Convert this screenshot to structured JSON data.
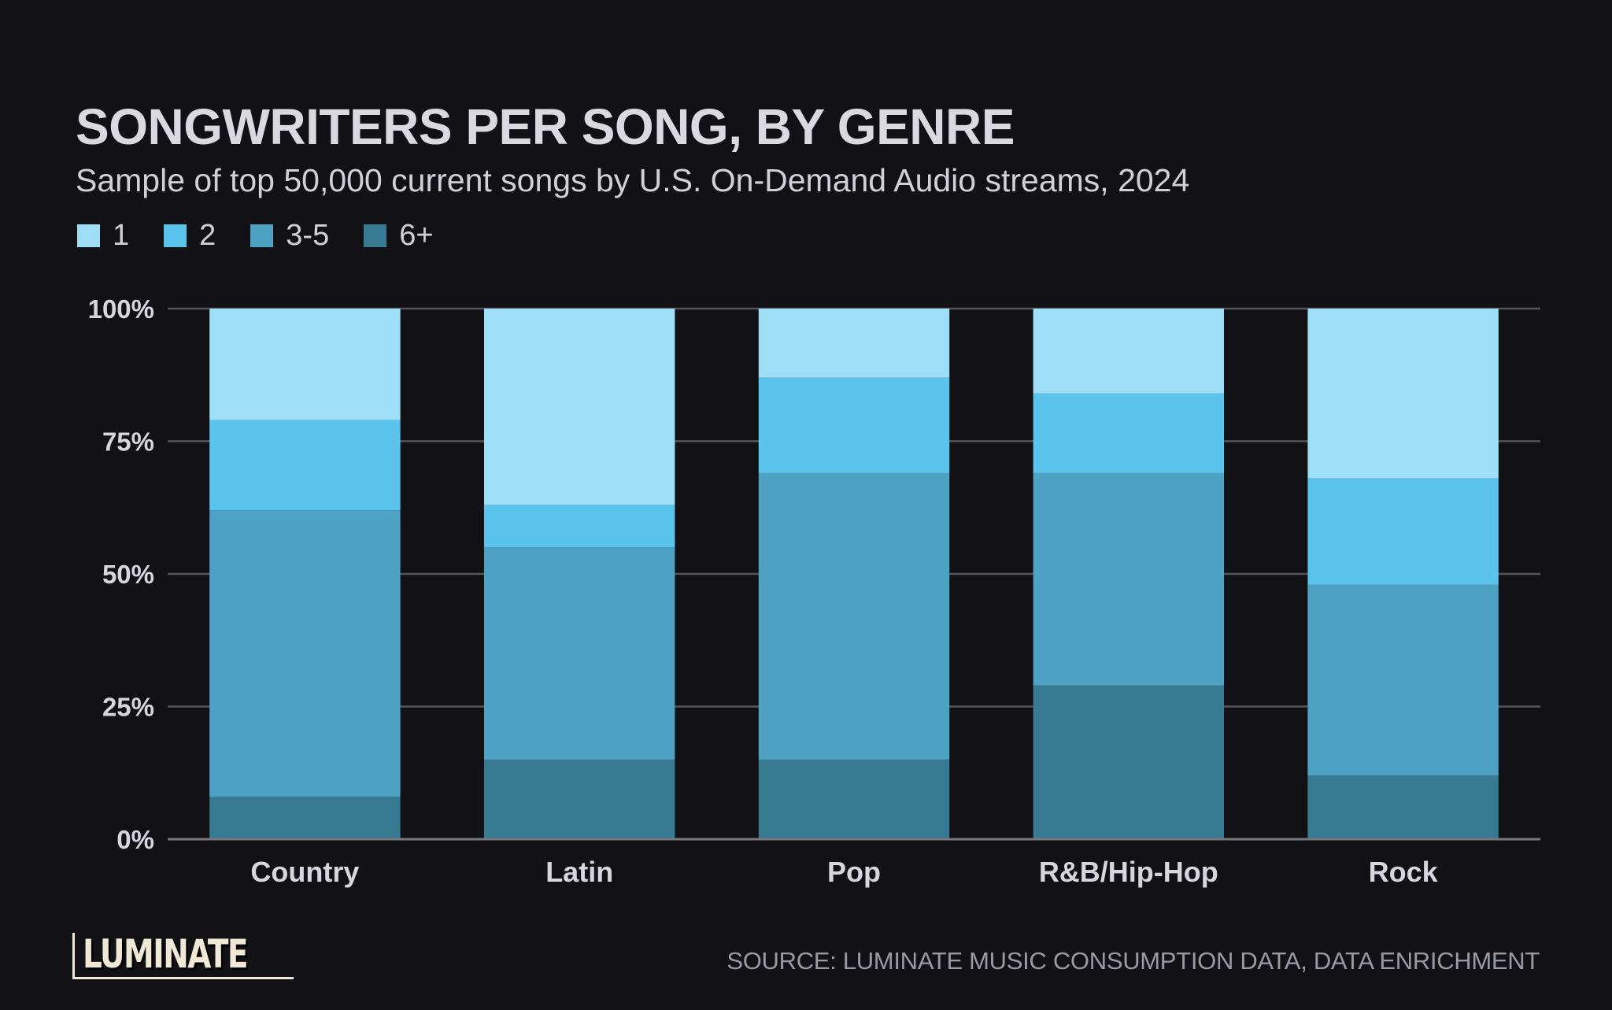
{
  "header": {
    "title": "SONGWRITERS PER SONG, BY GENRE",
    "subtitle": "Sample of top 50,000 current songs by U.S. On-Demand Audio streams, 2024"
  },
  "legend": [
    {
      "label": "1",
      "color": "#9edff7"
    },
    {
      "label": "2",
      "color": "#5ac4ed"
    },
    {
      "label": "3-5",
      "color": "#4ea2c3"
    },
    {
      "label": "6+",
      "color": "#387a92"
    }
  ],
  "chart_data": {
    "type": "bar",
    "stacked": true,
    "title": "SONGWRITERS PER SONG, BY GENRE",
    "subtitle": "Sample of top 50,000 current songs by U.S. On-Demand Audio streams, 2024",
    "xlabel": "",
    "ylabel": "",
    "ylim": [
      0,
      100
    ],
    "yticks": [
      0,
      25,
      50,
      75,
      100
    ],
    "ytick_labels": [
      "0%",
      "25%",
      "50%",
      "75%",
      "100%"
    ],
    "grid": true,
    "legend_position": "top-left",
    "categories": [
      "Country",
      "Latin",
      "Pop",
      "R&B/Hip-Hop",
      "Rock"
    ],
    "series": [
      {
        "name": "6+",
        "color": "#387a92",
        "values": [
          8,
          15,
          15,
          29,
          12
        ]
      },
      {
        "name": "3-5",
        "color": "#4ea2c3",
        "values": [
          54,
          40,
          54,
          40,
          36
        ]
      },
      {
        "name": "2",
        "color": "#5ac4ed",
        "values": [
          17,
          8,
          18,
          15,
          20
        ]
      },
      {
        "name": "1",
        "color": "#9edff7",
        "values": [
          21,
          37,
          13,
          16,
          32
        ]
      }
    ],
    "colors": {
      "background": "#111116",
      "grid": "#55555c",
      "text": "#d6d6dc"
    }
  },
  "footer": {
    "logo": "LUMINATE",
    "source": "SOURCE: LUMINATE MUSIC CONSUMPTION DATA, DATA ENRICHMENT"
  }
}
